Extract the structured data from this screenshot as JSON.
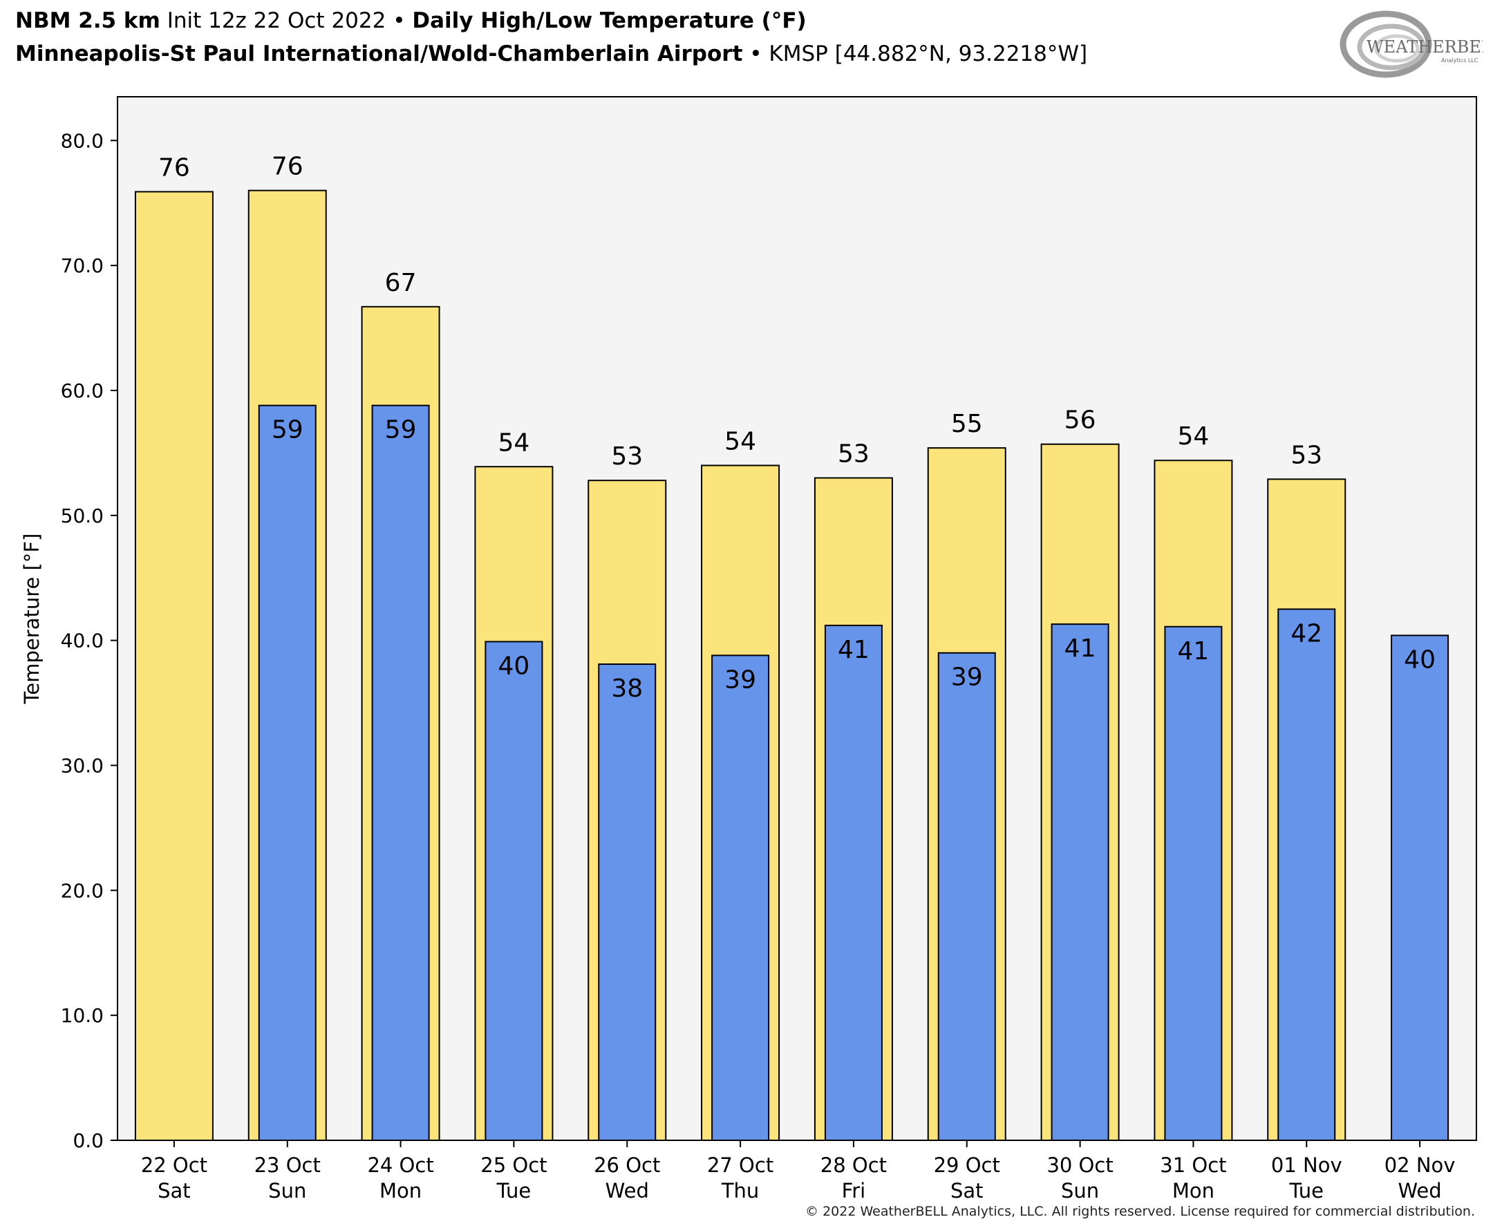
{
  "header": {
    "model": "NBM 2.5 km",
    "init": "Init 12z 22 Oct 2022",
    "sep": "•",
    "product": "Daily High/Low Temperature (°F)",
    "station_name": "Minneapolis-St Paul International/Wold-Chamberlain Airport",
    "station_info": "KMSP [44.882°N, 93.2218°W]"
  },
  "logo": {
    "text_main": "WEATHERBELL",
    "text_sub": "Analytics LLC"
  },
  "copyright": "© 2022 WeatherBELL Analytics, LLC. All rights reserved. License required for commercial distribution.",
  "colors": {
    "high": "#fbe47c",
    "low": "#6694ea",
    "plot_bg": "#f4f4f4",
    "edge": "#000000"
  },
  "chart_data": {
    "type": "bar",
    "ylabel": "Temperature [°F]",
    "ylim": [
      0,
      83.5
    ],
    "yticks": [
      "0.0",
      "10.0",
      "20.0",
      "30.0",
      "40.0",
      "50.0",
      "60.0",
      "70.0",
      "80.0"
    ],
    "grid": false,
    "categories": [
      [
        "22 Oct",
        "Sat"
      ],
      [
        "23 Oct",
        "Sun"
      ],
      [
        "24 Oct",
        "Mon"
      ],
      [
        "25 Oct",
        "Tue"
      ],
      [
        "26 Oct",
        "Wed"
      ],
      [
        "27 Oct",
        "Thu"
      ],
      [
        "28 Oct",
        "Fri"
      ],
      [
        "29 Oct",
        "Sat"
      ],
      [
        "30 Oct",
        "Sun"
      ],
      [
        "31 Oct",
        "Mon"
      ],
      [
        "01 Nov",
        "Tue"
      ],
      [
        "02 Nov",
        "Wed"
      ]
    ],
    "series": [
      {
        "key": "high",
        "values": [
          75.9,
          76.0,
          66.7,
          53.9,
          52.8,
          54.0,
          53.0,
          55.4,
          55.7,
          54.4,
          52.9,
          null
        ],
        "labels": [
          "76",
          "76",
          "67",
          "54",
          "53",
          "54",
          "53",
          "55",
          "56",
          "54",
          "53",
          null
        ]
      },
      {
        "key": "low",
        "values": [
          null,
          58.8,
          58.8,
          39.9,
          38.1,
          38.8,
          41.2,
          39.0,
          41.3,
          41.1,
          42.5,
          40.4
        ],
        "labels": [
          null,
          "59",
          "59",
          "40",
          "38",
          "39",
          "41",
          "39",
          "41",
          "41",
          "42",
          "40"
        ]
      }
    ]
  }
}
